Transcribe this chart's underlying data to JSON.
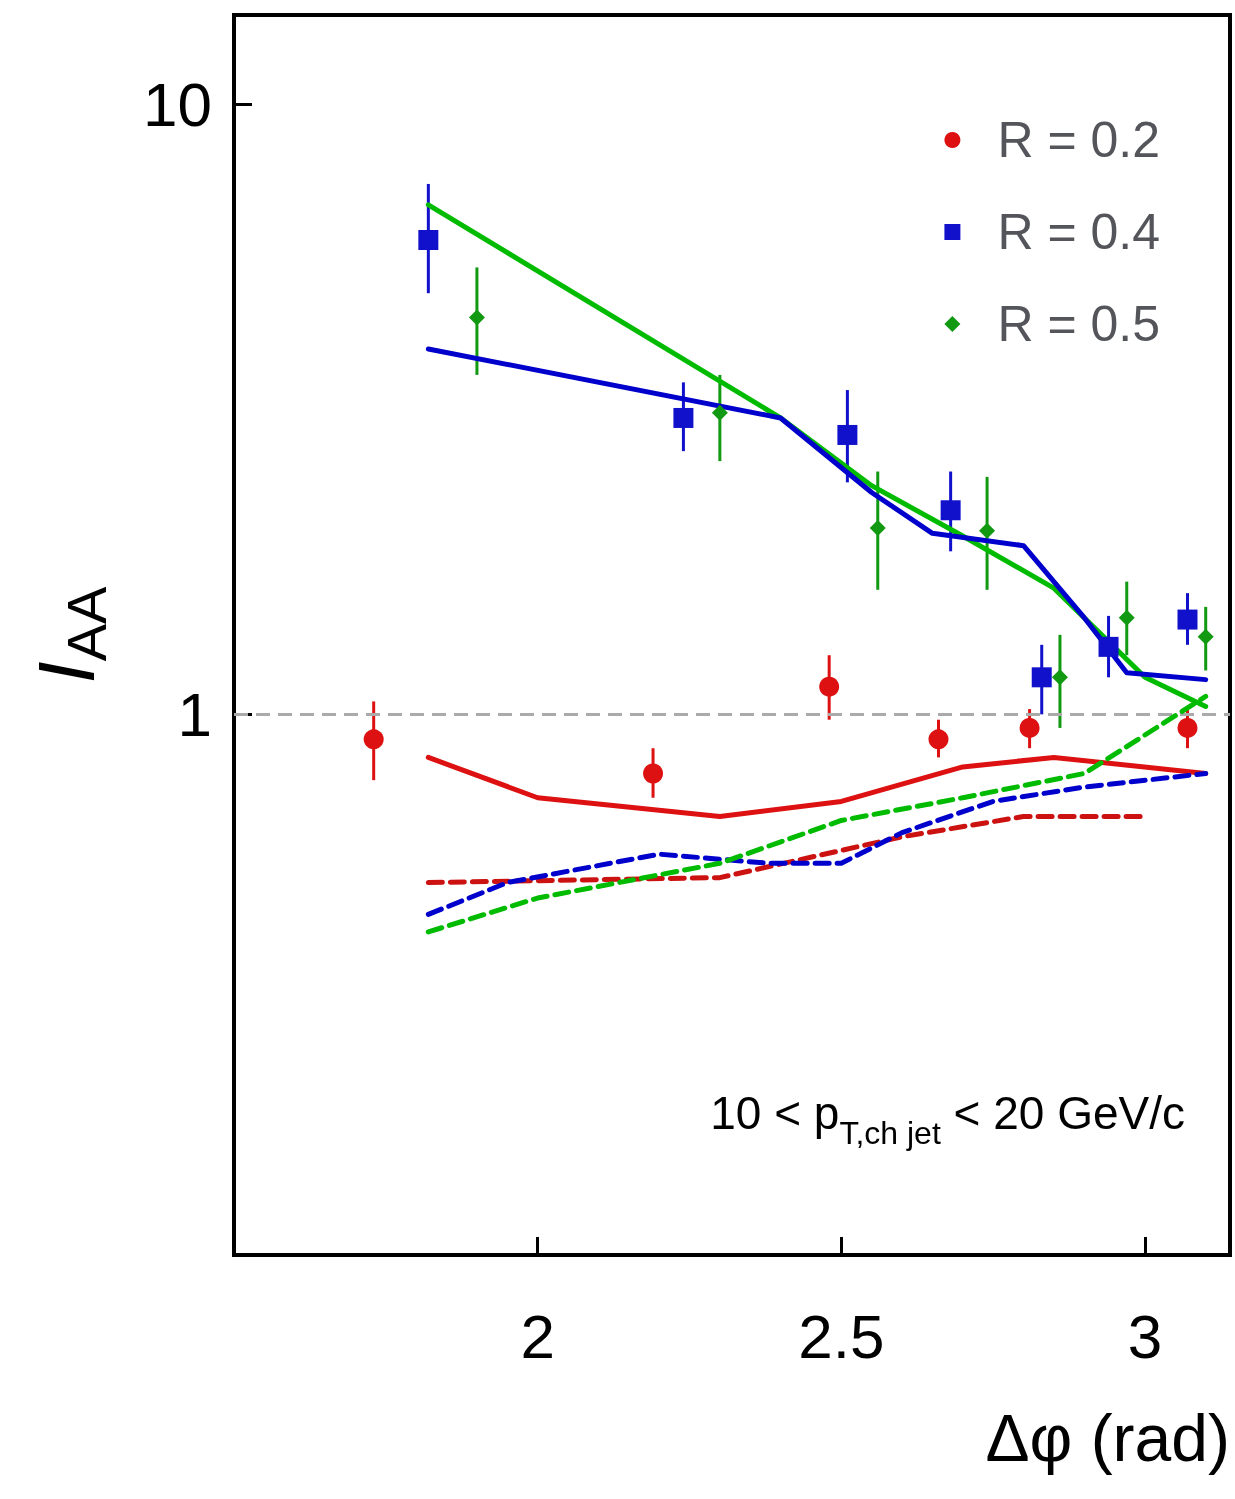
{
  "chart_data": {
    "type": "scatter",
    "xlabel": "Δφ (rad)",
    "ylabel": "I$_{AA}$",
    "log": "y",
    "legend": "top right",
    "grid": false,
    "xlim": [
      1.5,
      3.14
    ],
    "ylim": [
      0.13,
      14
    ],
    "xticks": [
      2,
      2.5,
      3
    ],
    "yticks": [
      1,
      10
    ],
    "ref_lines": [
      {
        "axis": "y",
        "value": 1,
        "label": null,
        "color": "#aaaaaa",
        "line_style": "dashed"
      }
    ],
    "annotations": [
      "10 < p$_{T,ch jet}$ < 20 GeV/c"
    ],
    "series": [
      {
        "name": "R = 0.2",
        "color": "#dd1111",
        "marker": "circle",
        "x": [
          1.73,
          2.19,
          2.48,
          2.66,
          2.81,
          3.07
        ],
        "values": [
          0.91,
          0.8,
          1.11,
          0.91,
          0.95,
          0.95
        ],
        "errors": [
          [
            0.78,
            1.05
          ],
          [
            0.73,
            0.88
          ],
          [
            0.98,
            1.25
          ],
          [
            0.85,
            0.98
          ],
          [
            0.88,
            1.02
          ],
          [
            0.88,
            1.02
          ]
        ]
      },
      {
        "name": "R = 0.4",
        "color": "#1111cc",
        "marker": "square",
        "x": [
          1.82,
          2.24,
          2.51,
          2.68,
          2.83,
          2.94,
          3.07
        ],
        "values": [
          5.99,
          3.06,
          2.87,
          2.16,
          1.15,
          1.29,
          1.43
        ],
        "errors": [
          [
            4.9,
            7.4
          ],
          [
            2.7,
            3.5
          ],
          [
            2.4,
            3.4
          ],
          [
            1.85,
            2.5
          ],
          [
            1.0,
            1.3
          ],
          [
            1.15,
            1.45
          ],
          [
            1.3,
            1.58
          ]
        ]
      },
      {
        "name": "R = 0.5",
        "color": "#119911",
        "marker": "diamond",
        "x": [
          1.9,
          2.3,
          2.56,
          2.74,
          2.86,
          2.97,
          3.1
        ],
        "values": [
          4.47,
          3.12,
          2.02,
          2.0,
          1.15,
          1.44,
          1.34
        ],
        "errors": [
          [
            3.6,
            5.4
          ],
          [
            2.6,
            3.6
          ],
          [
            1.6,
            2.5
          ],
          [
            1.6,
            2.45
          ],
          [
            0.95,
            1.35
          ],
          [
            1.25,
            1.65
          ],
          [
            1.18,
            1.5
          ]
        ]
      },
      {
        "type": "line",
        "color": "#00bb00",
        "marker": "none",
        "line_style": "solid",
        "x": [
          1.82,
          2.4,
          2.55,
          2.7,
          2.85,
          3.0,
          3.1
        ],
        "values": [
          6.84,
          3.06,
          2.37,
          1.96,
          1.61,
          1.15,
          1.03
        ]
      },
      {
        "type": "line",
        "color": "#0000cc",
        "marker": "none",
        "line_style": "solid",
        "x": [
          1.82,
          2.4,
          2.55,
          2.65,
          2.8,
          2.9,
          2.97,
          3.1
        ],
        "values": [
          3.97,
          3.06,
          2.31,
          1.98,
          1.89,
          1.44,
          1.17,
          1.14
        ]
      },
      {
        "type": "line",
        "color": "#dd1111",
        "marker": "none",
        "line_style": "solid",
        "x": [
          1.82,
          2.0,
          2.3,
          2.5,
          2.7,
          2.85,
          3.1
        ],
        "values": [
          0.85,
          0.73,
          0.68,
          0.72,
          0.82,
          0.85,
          0.8
        ]
      },
      {
        "type": "line",
        "color": "#cc1111",
        "marker": "none",
        "line_style": "dashed",
        "x": [
          1.82,
          2.3,
          2.6,
          2.8,
          3.0
        ],
        "values": [
          0.53,
          0.54,
          0.63,
          0.68,
          0.68
        ]
      },
      {
        "type": "line",
        "color": "#0000cc",
        "marker": "none",
        "line_style": "dashed",
        "x": [
          1.82,
          1.95,
          2.2,
          2.38,
          2.5,
          2.6,
          2.75,
          2.9,
          3.1
        ],
        "values": [
          0.47,
          0.53,
          0.59,
          0.57,
          0.57,
          0.64,
          0.72,
          0.76,
          0.8
        ]
      },
      {
        "type": "line",
        "color": "#00bb00",
        "marker": "none",
        "line_style": "dashed",
        "x": [
          1.82,
          2.0,
          2.3,
          2.5,
          2.7,
          2.9,
          3.1
        ],
        "values": [
          0.44,
          0.5,
          0.57,
          0.67,
          0.73,
          0.8,
          1.07
        ]
      }
    ]
  }
}
